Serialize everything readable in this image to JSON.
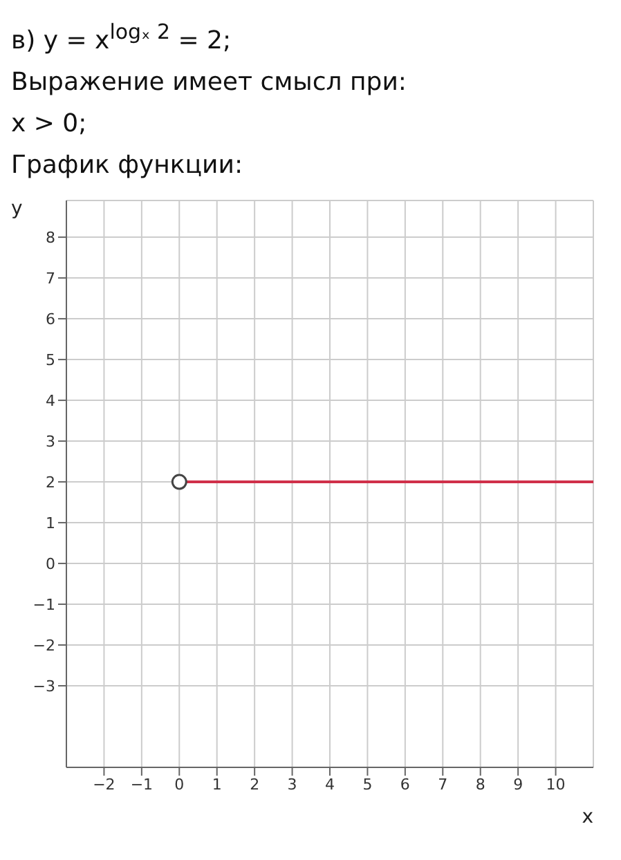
{
  "chart_data": {
    "type": "line",
    "title": "в) y = x$^{logₓ 2}$ = 2;",
    "annotations": [
      "Выражение имеет смысл при:",
      "x > 0;",
      "График функции:"
    ],
    "xlabel": "x",
    "ylabel": "y",
    "series": [
      {
        "x": [
          0,
          11
        ],
        "values": [
          2,
          2
        ],
        "color": "#d0304a"
      }
    ],
    "xlim": [
      -3,
      11
    ],
    "ylim": [
      -5,
      8.9
    ],
    "xticks": [
      -2,
      -1,
      0,
      1,
      2,
      3,
      4,
      5,
      6,
      7,
      8,
      9,
      10
    ],
    "yticks": [
      -3,
      -2,
      -1,
      0,
      1,
      2,
      3,
      4,
      5,
      6,
      7,
      8
    ],
    "grid": true
  }
}
